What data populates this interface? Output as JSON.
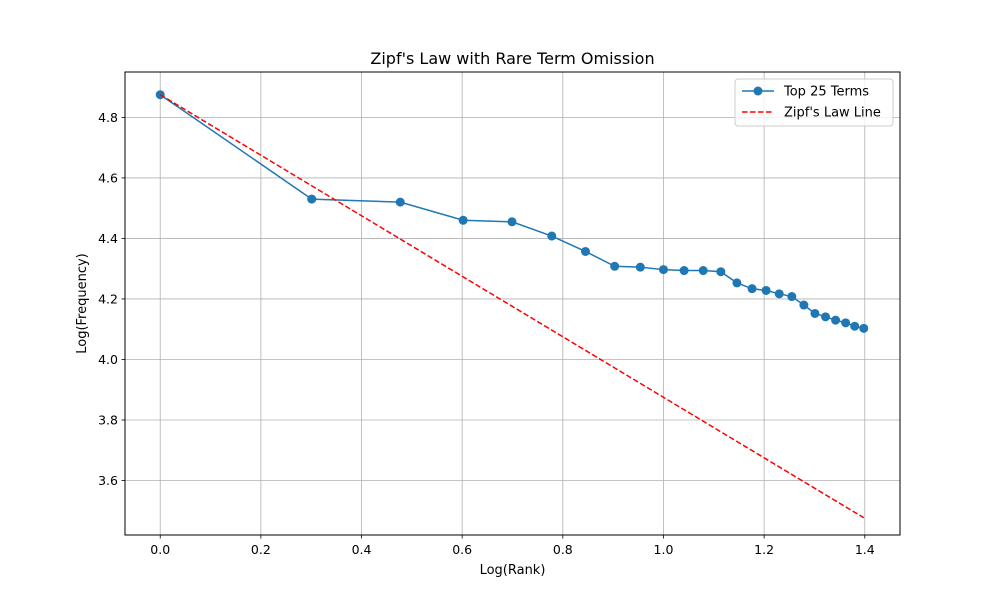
{
  "chart_data": {
    "type": "line",
    "title": "Zipf's Law with Rare Term Omission",
    "xlabel": "Log(Rank)",
    "ylabel": "Log(Frequency)",
    "xlim": [
      -0.07,
      1.47
    ],
    "ylim": [
      3.42,
      4.95
    ],
    "xticks": [
      0.0,
      0.2,
      0.4,
      0.6,
      0.8,
      1.0,
      1.2,
      1.4
    ],
    "xtick_labels": [
      "0.0",
      "0.2",
      "0.4",
      "0.6",
      "0.8",
      "1.0",
      "1.2",
      "1.4"
    ],
    "yticks": [
      3.6,
      3.8,
      4.0,
      4.2,
      4.4,
      4.6,
      4.8
    ],
    "ytick_labels": [
      "3.6",
      "3.8",
      "4.0",
      "4.2",
      "4.4",
      "4.6",
      "4.8"
    ],
    "grid": true,
    "legend_position": "top-right",
    "series": [
      {
        "name": "Top 25 Terms",
        "style": "solid-markers",
        "color": "#1f77b4",
        "x": [
          0.0,
          0.301,
          0.477,
          0.602,
          0.699,
          0.778,
          0.845,
          0.903,
          0.954,
          1.0,
          1.041,
          1.079,
          1.114,
          1.146,
          1.176,
          1.204,
          1.23,
          1.255,
          1.279,
          1.301,
          1.322,
          1.342,
          1.362,
          1.38,
          1.398
        ],
        "y": [
          4.875,
          4.53,
          4.52,
          4.46,
          4.455,
          4.408,
          4.357,
          4.308,
          4.305,
          4.297,
          4.294,
          4.294,
          4.29,
          4.253,
          4.234,
          4.228,
          4.217,
          4.208,
          4.18,
          4.152,
          4.141,
          4.13,
          4.121,
          4.11,
          4.103
        ]
      },
      {
        "name": "Zipf's Law Line",
        "style": "dashed",
        "color": "#ff0000",
        "x": [
          0.0,
          1.398
        ],
        "y": [
          4.875,
          3.477
        ]
      }
    ]
  }
}
